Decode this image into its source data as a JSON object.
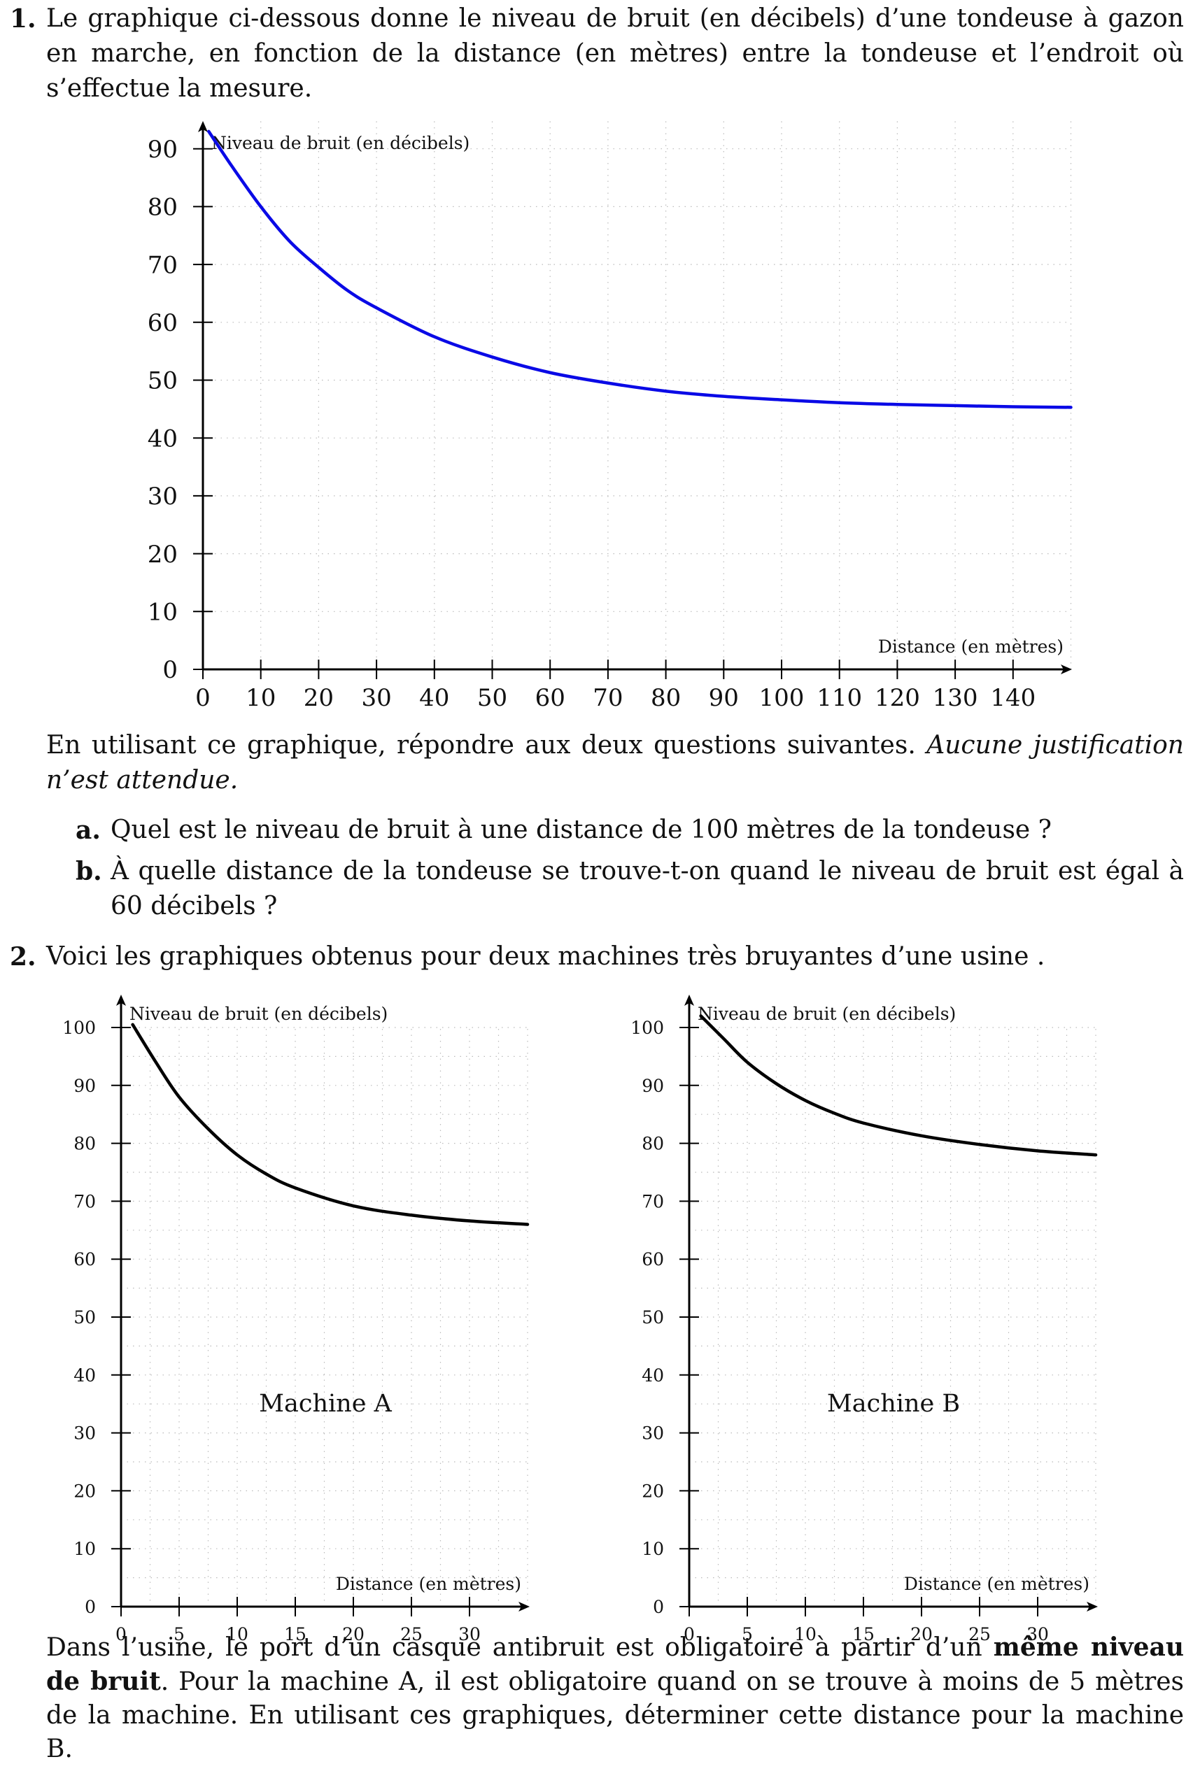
{
  "q1": {
    "number": "1.",
    "intro": "Le graphique ci-dessous donne le niveau de bruit (en décibels) d’une tondeuse à gazon en marche, en fonction de la distance (en mètres) entre la tondeuse et l’endroit où s’effectue la mesure.",
    "instruction_normal": "En utilisant ce graphique, répondre aux deux questions suivantes. ",
    "instruction_italic": "Aucune justification n’est attendue.",
    "a_label": "a.",
    "a_text": "Quel est le niveau de bruit à une distance de 100 mètres de la tondeuse ?",
    "b_label": "b.",
    "b_text": "À quelle distance de la tondeuse se trouve-t-on quand le niveau de bruit est égal à 60 décibels ?"
  },
  "q2": {
    "number": "2.",
    "intro": "Voici les graphiques obtenus pour deux machines très bruyantes d’une usine .",
    "conclusion_1": "Dans l’usine, le port d’un casque antibruit est obligatoire à partir d’un ",
    "conclusion_bold": "même niveau de bruit",
    "conclusion_2": ". Pour la machine A, il est obligatoire quand on se trouve à moins de 5 mètres de la machine. En utilisant ces graphiques, déterminer cette distance pour la machine B."
  },
  "chart_data": [
    {
      "type": "line",
      "ylabel": "Niveau de bruit (en décibels)",
      "xlabel": "Distance (en mètres)",
      "xlim": [
        0,
        150
      ],
      "ylim": [
        0,
        95
      ],
      "xticks": [
        0,
        10,
        20,
        30,
        40,
        50,
        60,
        70,
        80,
        90,
        100,
        110,
        120,
        130,
        140
      ],
      "yticks": [
        0,
        10,
        20,
        30,
        40,
        50,
        60,
        70,
        80,
        90
      ],
      "grid": true,
      "color": "#0a0ae6",
      "series": [
        {
          "x": [
            1,
            5,
            10,
            15,
            20,
            25,
            30,
            40,
            50,
            60,
            70,
            80,
            90,
            100,
            110,
            120,
            130,
            140,
            150
          ],
          "y": [
            93,
            87,
            80,
            74,
            69.5,
            65.5,
            62.5,
            57.5,
            54,
            51.3,
            49.5,
            48.1,
            47.2,
            46.6,
            46.1,
            45.8,
            45.6,
            45.4,
            45.3
          ]
        }
      ]
    },
    {
      "type": "line",
      "ylabel": "Niveau de bruit (en décibels)",
      "xlabel": "Distance (en mètres)",
      "annotation": "Machine A",
      "xlim": [
        0,
        35
      ],
      "ylim": [
        0,
        100
      ],
      "xticks": [
        0,
        5,
        10,
        15,
        20,
        25,
        30
      ],
      "yticks": [
        0,
        10,
        20,
        30,
        40,
        50,
        60,
        70,
        80,
        90,
        100
      ],
      "grid": true,
      "color": "#000000",
      "series": [
        {
          "x": [
            1,
            3,
            5,
            7.5,
            10,
            12.5,
            15,
            20,
            25,
            30,
            35
          ],
          "y": [
            100.5,
            94,
            88,
            82.5,
            78,
            74.7,
            72.3,
            69.2,
            67.6,
            66.6,
            66
          ]
        }
      ]
    },
    {
      "type": "line",
      "ylabel": "Niveau de bruit (en décibels)",
      "xlabel": "Distance (en mètres)",
      "annotation": "Machine B",
      "xlim": [
        0,
        35
      ],
      "ylim": [
        0,
        100
      ],
      "xticks": [
        0,
        5,
        10,
        15,
        20,
        25,
        30
      ],
      "yticks": [
        0,
        10,
        20,
        30,
        40,
        50,
        60,
        70,
        80,
        90,
        100
      ],
      "grid": true,
      "color": "#000000",
      "series": [
        {
          "x": [
            1,
            3,
            5,
            7.5,
            10,
            12.5,
            15,
            20,
            25,
            30,
            35
          ],
          "y": [
            102,
            98,
            94,
            90.3,
            87.4,
            85.2,
            83.5,
            81.3,
            79.8,
            78.7,
            78
          ]
        }
      ]
    }
  ]
}
